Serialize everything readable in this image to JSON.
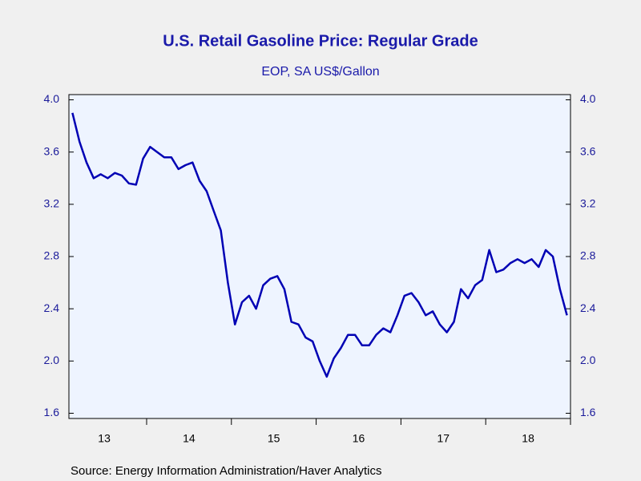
{
  "chart_data": {
    "type": "line",
    "title": "U.S. Retail Gasoline Price: Regular Grade",
    "subtitle": "EOP, SA US$/Gallon",
    "source": "Source:  Energy Information Administration/Haver Analytics",
    "x": [
      "2013-02",
      "2013-03",
      "2013-04",
      "2013-05",
      "2013-06",
      "2013-07",
      "2013-08",
      "2013-09",
      "2013-10",
      "2013-11",
      "2013-12",
      "2014-01",
      "2014-02",
      "2014-03",
      "2014-04",
      "2014-05",
      "2014-06",
      "2014-07",
      "2014-08",
      "2014-09",
      "2014-10",
      "2014-11",
      "2014-12",
      "2015-01",
      "2015-02",
      "2015-03",
      "2015-04",
      "2015-05",
      "2015-06",
      "2015-07",
      "2015-08",
      "2015-09",
      "2015-10",
      "2015-11",
      "2015-12",
      "2016-01",
      "2016-02",
      "2016-03",
      "2016-04",
      "2016-05",
      "2016-06",
      "2016-07",
      "2016-08",
      "2016-09",
      "2016-10",
      "2016-11",
      "2016-12",
      "2017-01",
      "2017-02",
      "2017-03",
      "2017-04",
      "2017-05",
      "2017-06",
      "2017-07",
      "2017-08",
      "2017-09",
      "2017-10",
      "2017-11",
      "2017-12",
      "2018-01",
      "2018-02",
      "2018-03",
      "2018-04",
      "2018-05",
      "2018-06",
      "2018-07",
      "2018-08",
      "2018-09",
      "2018-10",
      "2018-11",
      "2018-12"
    ],
    "series": [
      {
        "name": "Regular Grade",
        "color": "#0000b4",
        "values": [
          3.9,
          3.68,
          3.52,
          3.4,
          3.43,
          3.4,
          3.44,
          3.42,
          3.36,
          3.35,
          3.55,
          3.64,
          3.6,
          3.56,
          3.56,
          3.47,
          3.5,
          3.52,
          3.38,
          3.3,
          3.15,
          3.0,
          2.6,
          2.28,
          2.45,
          2.5,
          2.4,
          2.58,
          2.63,
          2.65,
          2.55,
          2.3,
          2.28,
          2.18,
          2.15,
          2.0,
          1.88,
          2.02,
          2.1,
          2.2,
          2.2,
          2.12,
          2.12,
          2.2,
          2.25,
          2.22,
          2.35,
          2.5,
          2.52,
          2.45,
          2.35,
          2.38,
          2.28,
          2.22,
          2.3,
          2.55,
          2.48,
          2.58,
          2.62,
          2.85,
          2.68,
          2.7,
          2.75,
          2.78,
          2.75,
          2.78,
          2.72,
          2.85,
          2.8,
          2.55,
          2.35
        ]
      }
    ],
    "xlim": [
      "2013-02",
      "2019-01"
    ],
    "xticks": [
      "2014-01",
      "2015-01",
      "2016-01",
      "2017-01",
      "2018-01",
      "2019-01"
    ],
    "xlabels": [
      {
        "value": "2013-07",
        "label": "13"
      },
      {
        "value": "2014-07",
        "label": "14"
      },
      {
        "value": "2015-07",
        "label": "15"
      },
      {
        "value": "2016-07",
        "label": "16"
      },
      {
        "value": "2017-07",
        "label": "17"
      },
      {
        "value": "2018-07",
        "label": "18"
      }
    ],
    "ylim": [
      1.56,
      4.04
    ],
    "yticks": [
      {
        "value": 1.6,
        "label": "1.6"
      },
      {
        "value": 2,
        "label": "2.0"
      },
      2.4,
      2.8,
      3.2,
      3.6,
      {
        "value": 4,
        "label": "4.0"
      }
    ],
    "y2lim": [
      1.56,
      4.04
    ],
    "y2ticks": [
      {
        "value": 1.6,
        "label": "1.6"
      },
      {
        "value": 2,
        "label": "2.0"
      },
      2.4,
      2.8,
      3.2,
      3.6,
      {
        "value": 4,
        "label": "4.0"
      }
    ]
  }
}
